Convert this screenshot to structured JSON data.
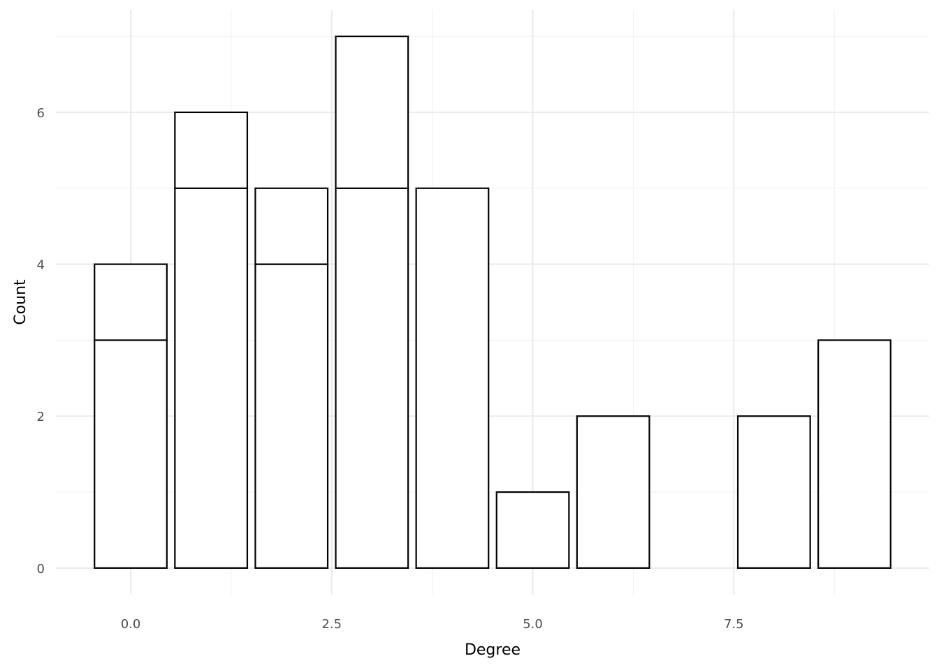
{
  "chart_data": {
    "type": "bar",
    "title": "",
    "xlabel": "Degree",
    "ylabel": "Count",
    "xlim": [
      -0.93,
      9.93
    ],
    "ylim": [
      -0.35,
      7.35
    ],
    "x_major_ticks": [
      0,
      2.5,
      5,
      7.5
    ],
    "x_tick_labels": [
      "0.0",
      "2.5",
      "5.0",
      "7.5"
    ],
    "x_minor_ticks": [
      1.25,
      3.75,
      6.25,
      8.75
    ],
    "y_major_ticks": [
      0,
      2,
      4,
      6
    ],
    "y_tick_labels": [
      "0",
      "2",
      "4",
      "6"
    ],
    "y_minor_ticks": [
      1,
      3,
      5,
      7
    ],
    "grid": true,
    "legend": "none",
    "fill_color": "#ffffff",
    "outline_color": "#000000",
    "bar_width": 0.9,
    "stacked": true,
    "bars": [
      {
        "x": 0,
        "segments": [
          3,
          1
        ]
      },
      {
        "x": 1,
        "segments": [
          5,
          1
        ]
      },
      {
        "x": 2,
        "segments": [
          4,
          1
        ]
      },
      {
        "x": 3,
        "segments": [
          5,
          2
        ]
      },
      {
        "x": 4,
        "segments": [
          5
        ]
      },
      {
        "x": 5,
        "segments": [
          1
        ]
      },
      {
        "x": 6,
        "segments": [
          2
        ]
      },
      {
        "x": 8,
        "segments": [
          2
        ]
      },
      {
        "x": 9,
        "segments": [
          3
        ]
      }
    ]
  }
}
